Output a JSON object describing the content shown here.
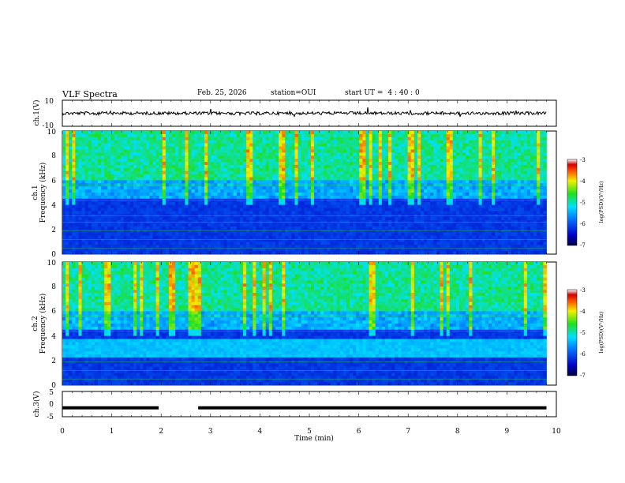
{
  "header": {
    "title": "VLF Spectra",
    "date": "Feb. 25, 2026",
    "station": "station=OUI",
    "start_label": "start  UT  =",
    "start_time": "4 : 40 : 0"
  },
  "chart_data": [
    {
      "type": "line",
      "name": "ch1 waveform",
      "ylabel": "ch.1(V)",
      "ylim": [
        -10,
        10
      ],
      "yticks": [
        "10",
        "-10"
      ],
      "xlim": [
        0,
        10
      ],
      "description_level_v": 0
    },
    {
      "type": "heatmap",
      "name": "ch1 spectrogram",
      "ylabel_lines": [
        "ch.1",
        "Frequency  (kHz)"
      ],
      "ylim": [
        0,
        10
      ],
      "yticks": [
        "0",
        "2",
        "4",
        "6",
        "8",
        "10"
      ],
      "xlim": [
        0,
        10
      ],
      "x_end_min": 9.8,
      "colorbar": {
        "label": "log(PSD)(V²/Hz)",
        "range": [
          -7,
          -3
        ],
        "ticks": [
          "-3",
          "-4",
          "-5",
          "-6",
          "-7"
        ]
      }
    },
    {
      "type": "heatmap",
      "name": "ch2 spectrogram",
      "ylabel_lines": [
        "ch.2",
        "Frequency  (kHz)"
      ],
      "ylim": [
        0,
        10
      ],
      "yticks": [
        "0",
        "2",
        "4",
        "6",
        "8",
        "10"
      ],
      "xlim": [
        0,
        10
      ],
      "x_end_min": 9.8,
      "colorbar": {
        "label": "log(PSD)(V²/Hz)",
        "range": [
          -7,
          -3
        ],
        "ticks": [
          "-3",
          "-4",
          "-5",
          "-6",
          "-7"
        ]
      }
    },
    {
      "type": "line",
      "name": "ch3 level",
      "ylabel": "ch.3(V)",
      "ylim": [
        -5,
        5
      ],
      "yticks": [
        "5",
        "0",
        "-5"
      ],
      "xlim": [
        0,
        10
      ],
      "xlabel": "Time  (min)",
      "xticks": [
        "0",
        "1",
        "2",
        "3",
        "4",
        "5",
        "6",
        "7",
        "8",
        "9",
        "10"
      ],
      "level_v": -1.5,
      "gap_min": [
        1.95,
        2.75
      ]
    }
  ]
}
